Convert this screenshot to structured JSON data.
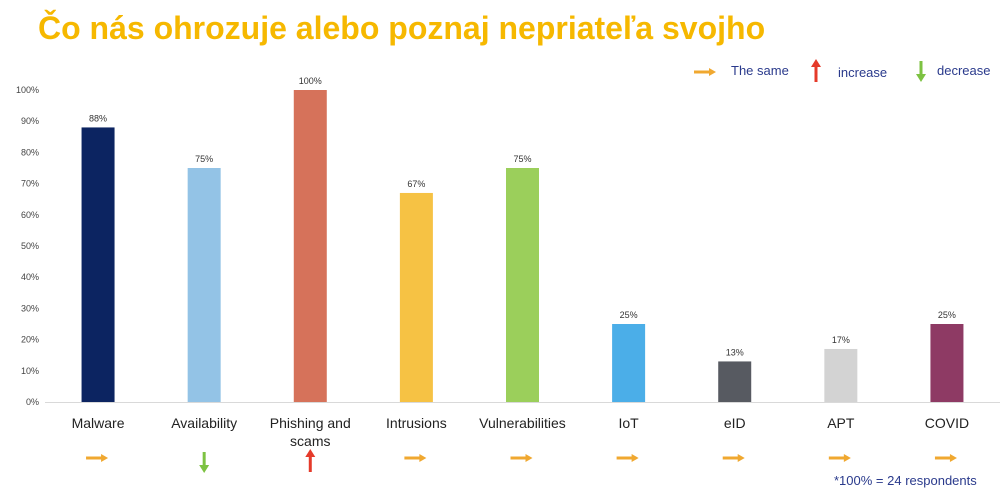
{
  "title": "Čo nás ohrozuje alebo poznaj nepriateľa svojho",
  "legend": {
    "same": {
      "label": "The same",
      "icon": "arrow-right-icon",
      "color": "#f0a830"
    },
    "increase": {
      "label": "increase",
      "icon": "arrow-up-icon",
      "color": "#e53a2a"
    },
    "decrease": {
      "label": "decrease",
      "icon": "arrow-down-icon",
      "color": "#7dc242"
    }
  },
  "footnote": "*100% = 24 respondents",
  "chart_data": {
    "type": "bar",
    "categories": [
      "Malware",
      "Availability",
      "Phishing and scams",
      "Intrusions",
      "Vulnerabilities",
      "IoT",
      "eID",
      "APT",
      "COVID"
    ],
    "category_lines": [
      [
        "Malware"
      ],
      [
        "Availability"
      ],
      [
        "Phishing and",
        "scams"
      ],
      [
        "Intrusions"
      ],
      [
        "Vulnerabilities"
      ],
      [
        "IoT"
      ],
      [
        "eID"
      ],
      [
        "APT"
      ],
      [
        "COVID"
      ]
    ],
    "values": [
      88,
      75,
      100,
      67,
      75,
      25,
      13,
      17,
      25
    ],
    "value_labels": [
      "88%",
      "75%",
      "100%",
      "67%",
      "75%",
      "25%",
      "13%",
      "17%",
      "25%"
    ],
    "colors": [
      "#0c2461",
      "#93c3e6",
      "#d6725a",
      "#f6c244",
      "#9bcf5b",
      "#4baee8",
      "#575a61",
      "#d3d3d3",
      "#8e3a64"
    ],
    "trends": [
      "same",
      "decrease",
      "increase",
      "same",
      "same",
      "same",
      "same",
      "same",
      "same"
    ],
    "yticks": [
      "0%",
      "10%",
      "20%",
      "30%",
      "40%",
      "50%",
      "60%",
      "70%",
      "80%",
      "90%",
      "100%"
    ],
    "ylim": [
      0,
      100
    ],
    "grid": false
  }
}
